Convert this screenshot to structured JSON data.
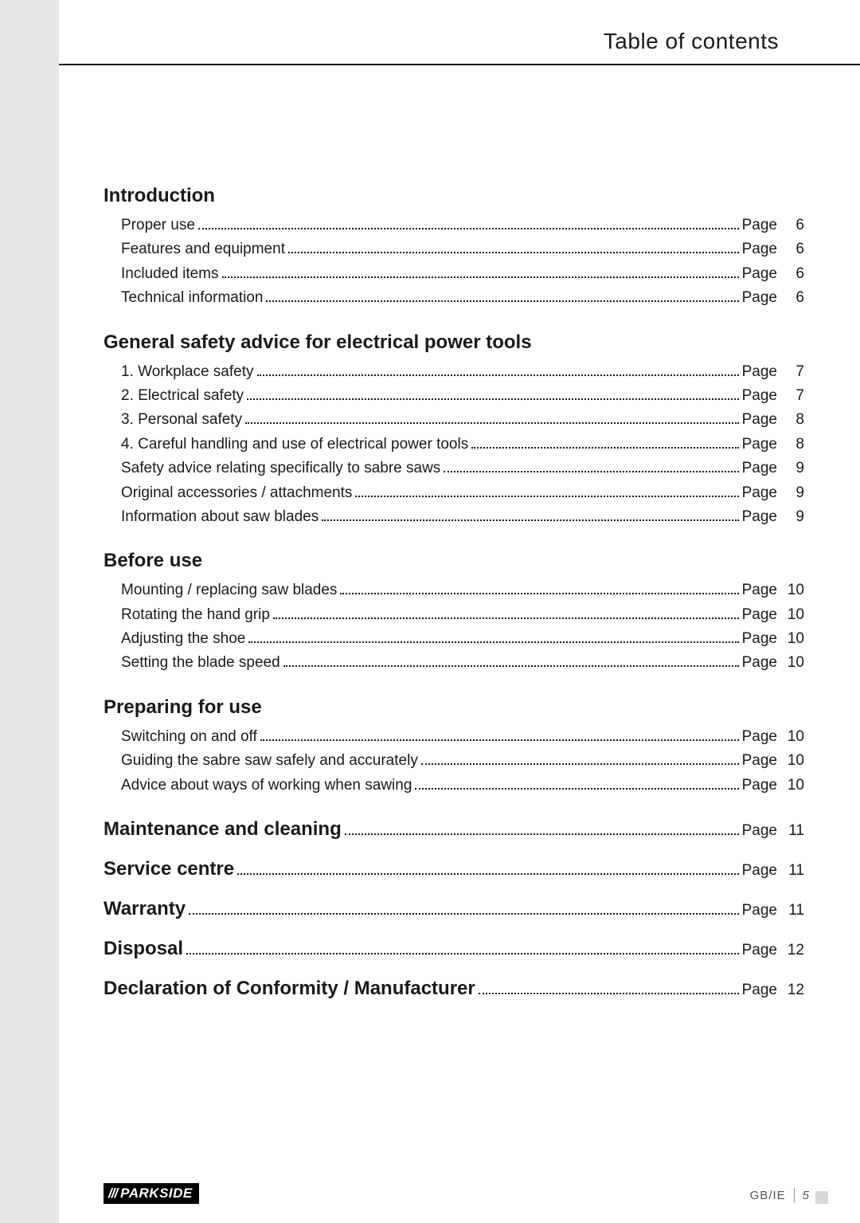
{
  "header": {
    "title": "Table of contents"
  },
  "sections": [
    {
      "title": "Introduction",
      "entries": [
        {
          "text": "Proper use",
          "page": "6"
        },
        {
          "text": "Features and equipment",
          "page": "6"
        },
        {
          "text": "Included items",
          "page": "6"
        },
        {
          "text": "Technical information",
          "page": "6"
        }
      ]
    },
    {
      "title": "General safety advice for electrical power tools",
      "entries": [
        {
          "text": "1. Workplace safety",
          "page": "7"
        },
        {
          "text": "2. Electrical safety",
          "page": "7"
        },
        {
          "text": "3. Personal safety",
          "page": "8"
        },
        {
          "text": "4. Careful handling and use of electrical power tools",
          "page": "8"
        },
        {
          "text": "Safety advice relating specifically to sabre saws",
          "page": "9"
        },
        {
          "text": "Original accessories / attachments",
          "page": "9"
        },
        {
          "text": "Information about saw blades",
          "page": "9"
        }
      ]
    },
    {
      "title": "Before use",
      "entries": [
        {
          "text": "Mounting / replacing saw blades",
          "page": "10"
        },
        {
          "text": "Rotating the hand grip",
          "page": "10"
        },
        {
          "text": "Adjusting the shoe",
          "page": "10"
        },
        {
          "text": "Setting the blade speed",
          "page": "10"
        }
      ]
    },
    {
      "title": "Preparing for use",
      "entries": [
        {
          "text": "Switching on and off",
          "page": "10"
        },
        {
          "text": "Guiding the sabre saw safely and accurately",
          "page": "10"
        },
        {
          "text": "Advice about ways of working when sawing",
          "page": "10"
        }
      ]
    }
  ],
  "standalone": [
    {
      "title": "Maintenance and cleaning",
      "page": "11"
    },
    {
      "title": "Service centre",
      "page": "11"
    },
    {
      "title": "Warranty",
      "page": "11"
    },
    {
      "title": "Disposal",
      "page": "12"
    },
    {
      "title": "Declaration of Conformity / Manufacturer",
      "page": "12"
    }
  ],
  "page_label": "Page",
  "footer": {
    "brand": "PARKSIDE",
    "locale": "GB/IE",
    "page_number": "5"
  }
}
